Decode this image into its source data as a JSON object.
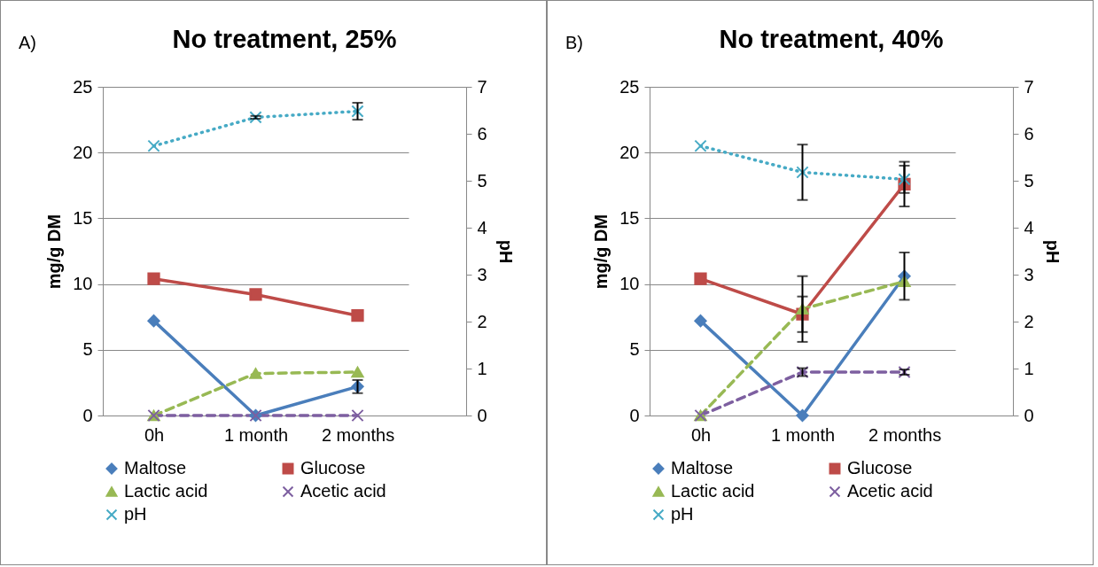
{
  "chart_data": [
    {
      "type": "line",
      "title": "No treatment, 25%",
      "annotations": [
        "A)"
      ],
      "categories": [
        "0h",
        "1 month",
        "2 months"
      ],
      "ylabel": "mg/g DM",
      "y2label": "pH",
      "ylim": [
        0,
        25
      ],
      "yticks": [
        0,
        5,
        10,
        15,
        20,
        25
      ],
      "y2lim": [
        0,
        7
      ],
      "y2ticks": [
        0,
        1,
        2,
        3,
        4,
        5,
        6,
        7
      ],
      "grid": "y",
      "legend": "bottom",
      "series": [
        {
          "name": "Maltose",
          "color": "#4a7ebb",
          "marker": "diamond",
          "line_style": "solid",
          "values": [
            7.2,
            0,
            2.2
          ],
          "errors": [
            null,
            null,
            0.5
          ]
        },
        {
          "name": "Glucose",
          "color": "#be4b48",
          "marker": "square",
          "line_style": "solid",
          "values": [
            10.4,
            9.2,
            7.6
          ]
        },
        {
          "name": "Lactic acid",
          "color": "#98b954",
          "marker": "triangle",
          "line_style": "dashed",
          "values": [
            0,
            3.2,
            3.3
          ]
        },
        {
          "name": "Acetic acid",
          "color": "#7d5fa0",
          "marker": "cross",
          "line_style": "dashed",
          "values": [
            0,
            0,
            0
          ]
        },
        {
          "name": "pH",
          "color": "#46aac5",
          "marker": "cross",
          "line_style": "dotted",
          "axis": "y2",
          "values": [
            5.74,
            6.35,
            6.48
          ],
          "errors": [
            null,
            0.03,
            0.18
          ]
        }
      ]
    },
    {
      "type": "line",
      "title": "No treatment, 40%",
      "annotations": [
        "B)"
      ],
      "categories": [
        "0h",
        "1 month",
        "2 months"
      ],
      "ylabel": "mg/g DM",
      "y2label": "pH",
      "ylim": [
        0,
        25
      ],
      "yticks": [
        0,
        5,
        10,
        15,
        20,
        25
      ],
      "y2lim": [
        0,
        7
      ],
      "y2ticks": [
        0,
        1,
        2,
        3,
        4,
        5,
        6,
        7
      ],
      "grid": "y",
      "legend": "bottom",
      "series": [
        {
          "name": "Maltose",
          "color": "#4a7ebb",
          "marker": "diamond",
          "line_style": "solid",
          "values": [
            7.2,
            0,
            10.6
          ],
          "errors": [
            null,
            null,
            1.8
          ]
        },
        {
          "name": "Glucose",
          "color": "#be4b48",
          "marker": "square",
          "line_style": "solid",
          "values": [
            10.4,
            7.7,
            17.6
          ],
          "errors": [
            null,
            1.35,
            1.7
          ]
        },
        {
          "name": "Lactic acid",
          "color": "#98b954",
          "marker": "triangle",
          "line_style": "dashed",
          "values": [
            0,
            8.1,
            10.2
          ],
          "errors": [
            null,
            2.5,
            null
          ]
        },
        {
          "name": "Acetic acid",
          "color": "#7d5fa0",
          "marker": "cross",
          "line_style": "dashed",
          "values": [
            0,
            3.3,
            3.3
          ],
          "errors": [
            null,
            0.3,
            0.2
          ]
        },
        {
          "name": "pH",
          "color": "#46aac5",
          "marker": "cross",
          "line_style": "dotted",
          "axis": "y2",
          "values": [
            5.74,
            5.18,
            5.03
          ],
          "errors": [
            null,
            0.59,
            0.29
          ]
        }
      ]
    }
  ]
}
